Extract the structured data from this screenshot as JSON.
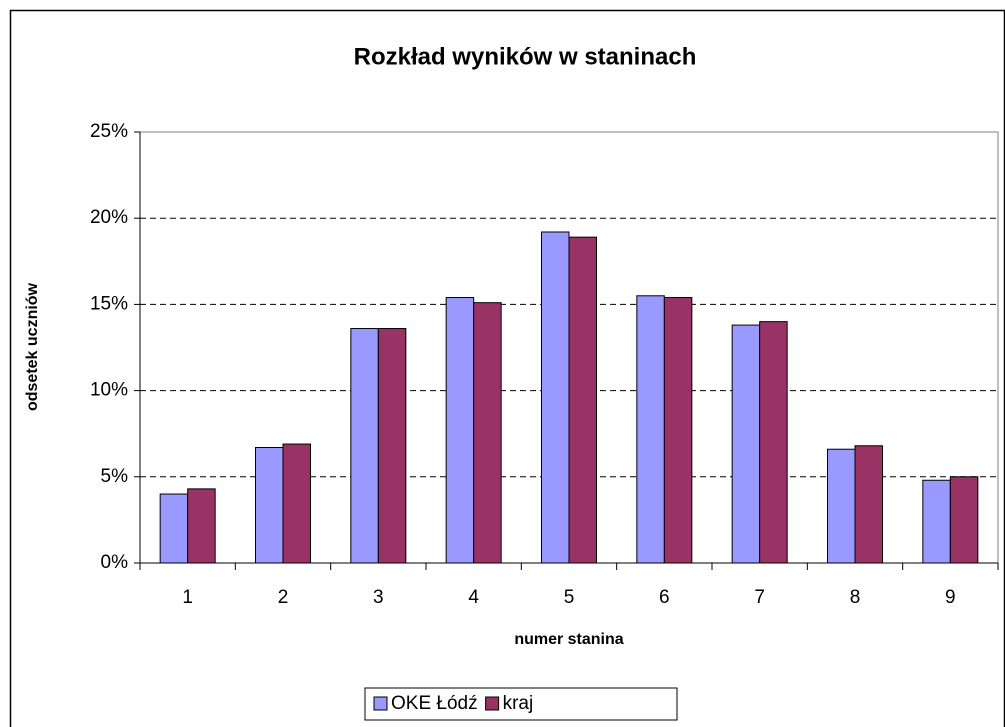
{
  "chart_data": {
    "type": "bar",
    "title": "Rozkład wyników w staninach",
    "x_label": "numer stanina",
    "y_label": "odsetek uczniów",
    "categories": [
      "1",
      "2",
      "3",
      "4",
      "5",
      "6",
      "7",
      "8",
      "9"
    ],
    "series": [
      {
        "name": "OKE Łódź",
        "color": "#9999ff",
        "values": [
          4.0,
          6.7,
          13.6,
          15.4,
          19.2,
          15.5,
          13.8,
          6.6,
          4.8
        ]
      },
      {
        "name": "kraj",
        "color": "#993366",
        "values": [
          4.3,
          6.9,
          13.6,
          15.1,
          18.9,
          15.4,
          14.0,
          6.8,
          5.0
        ]
      }
    ],
    "ylim": [
      0,
      25
    ],
    "yticks": [
      {
        "value": 0,
        "label": "0%"
      },
      {
        "value": 5,
        "label": "5%"
      },
      {
        "value": 10,
        "label": "10%"
      },
      {
        "value": 15,
        "label": "15%"
      },
      {
        "value": 20,
        "label": "20%"
      },
      {
        "value": 25,
        "label": "25%"
      }
    ],
    "grid": true,
    "legend": "bottom"
  }
}
